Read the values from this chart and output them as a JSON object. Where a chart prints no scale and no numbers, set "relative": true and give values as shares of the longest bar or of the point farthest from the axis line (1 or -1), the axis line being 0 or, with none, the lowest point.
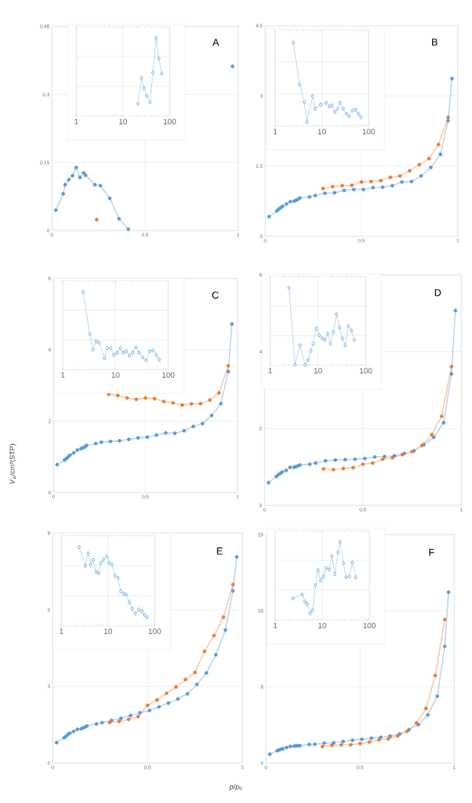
{
  "chart_data": [
    {
      "type": "line",
      "title": "A",
      "annotations": [
        "*V*$_{a}$/cm³(STP)",
        "*p*/*p*$_{0}$"
      ],
      "xlim": [
        0,
        1
      ],
      "xticks": [
        0,
        0.5,
        1
      ],
      "ylim": [
        0,
        0.45
      ],
      "yticks": [
        0,
        0.15,
        0.3,
        0.45
      ],
      "grid": true,
      "marker": "circle",
      "series": [
        {
          "color": "#5b9bd5",
          "x": [
            0.02,
            0.06,
            0.07,
            0.09,
            0.11,
            0.13,
            0.15,
            0.17,
            0.18,
            0.23,
            0.26,
            0.31,
            0.36,
            0.41
          ],
          "values": [
            0.045,
            0.081,
            0.101,
            0.112,
            0.121,
            0.139,
            0.117,
            0.127,
            0.122,
            0.101,
            0.099,
            0.071,
            0.026,
            0.003
          ]
        },
        {
          "color": "#5b9bd5",
          "x": [
            0.97
          ],
          "values": [
            0.362
          ]
        },
        {
          "color": "#ed7d31",
          "x": [
            0.24
          ],
          "values": [
            0.024
          ]
        }
      ]
    },
    {
      "type": "line",
      "log": "x",
      "relative": true,
      "tick_labels": "x",
      "xlim": [
        1,
        100
      ],
      "xticks": [
        1,
        10,
        100
      ],
      "grid": true,
      "marker": "diamond",
      "series": [
        {
          "color": "#5b9bd5",
          "x": [
            21,
            24.8,
            28.2,
            32.4,
            37.8,
            43.5,
            51.3,
            58.3,
            67.9
          ],
          "values": [
            0.16,
            0.49,
            0.36,
            0.26,
            0.18,
            0.56,
            1,
            0.74,
            0.55
          ]
        }
      ]
    },
    {
      "type": "line",
      "title": "B",
      "xlim": [
        0,
        1
      ],
      "xticks": [
        0,
        0.5,
        1
      ],
      "ylim": [
        0,
        4.5
      ],
      "yticks": [
        0,
        1.5,
        3,
        4.5
      ],
      "grid": true,
      "marker": "circle",
      "series": [
        {
          "color": "#5b9bd5",
          "x": [
            0.02,
            0.06,
            0.07,
            0.08,
            0.09,
            0.11,
            0.13,
            0.15,
            0.16,
            0.17,
            0.18,
            0.23,
            0.26,
            0.31,
            0.36,
            0.41,
            0.46,
            0.51,
            0.56,
            0.61,
            0.66,
            0.71,
            0.76,
            0.81,
            0.86,
            0.91,
            0.95,
            0.97
          ],
          "values": [
            0.42,
            0.54,
            0.58,
            0.61,
            0.64,
            0.69,
            0.74,
            0.75,
            0.77,
            0.79,
            0.82,
            0.84,
            0.87,
            0.92,
            0.93,
            0.98,
            1.0,
            1.0,
            1.04,
            1.05,
            1.08,
            1.16,
            1.17,
            1.29,
            1.47,
            1.75,
            2.47,
            3.37
          ]
        },
        {
          "color": "#ed7d31",
          "x": [
            0.3,
            0.35,
            0.4,
            0.45,
            0.5,
            0.55,
            0.6,
            0.65,
            0.7,
            0.75,
            0.8,
            0.85,
            0.9,
            0.95
          ],
          "values": [
            1.02,
            1.06,
            1.08,
            1.09,
            1.16,
            1.17,
            1.19,
            1.26,
            1.29,
            1.4,
            1.53,
            1.66,
            1.96,
            2.54
          ]
        }
      ]
    },
    {
      "type": "line",
      "log": "x",
      "relative": true,
      "tick_labels": "x",
      "xlim": [
        1,
        100
      ],
      "xticks": [
        1,
        10,
        100
      ],
      "grid": true,
      "marker": "diamond",
      "series": [
        {
          "color": "#5b9bd5",
          "x": [
            2.44,
            3.34,
            4.23,
            4.75,
            6.3,
            7.16,
            9.4,
            12.3,
            14.5,
            16.4,
            18.9,
            21.7,
            24.5,
            28.5,
            33.2,
            38.2,
            45.6,
            52.9,
            60.2,
            68.6
          ],
          "values": [
            1.0,
            0.5,
            0.29,
            0.05,
            0.36,
            0.21,
            0.26,
            0.28,
            0.24,
            0.25,
            0.17,
            0.21,
            0.28,
            0.21,
            0.15,
            0.12,
            0.19,
            0.2,
            0.15,
            0.11
          ]
        }
      ]
    },
    {
      "type": "line",
      "title": "C",
      "xlim": [
        0,
        1
      ],
      "xticks": [
        0,
        0.5,
        1
      ],
      "ylim": [
        0,
        6
      ],
      "yticks": [
        0,
        2,
        4,
        6
      ],
      "grid": true,
      "marker": "circle",
      "series": [
        {
          "color": "#5b9bd5",
          "x": [
            0.02,
            0.06,
            0.07,
            0.08,
            0.09,
            0.11,
            0.13,
            0.15,
            0.16,
            0.17,
            0.18,
            0.23,
            0.26,
            0.31,
            0.36,
            0.41,
            0.46,
            0.51,
            0.56,
            0.61,
            0.66,
            0.71,
            0.76,
            0.81,
            0.86,
            0.91,
            0.95,
            0.97
          ],
          "values": [
            0.78,
            0.91,
            0.95,
            1.0,
            1.05,
            1.11,
            1.19,
            1.23,
            1.25,
            1.28,
            1.32,
            1.37,
            1.41,
            1.43,
            1.45,
            1.49,
            1.53,
            1.55,
            1.61,
            1.67,
            1.66,
            1.73,
            1.85,
            1.93,
            2.16,
            2.49,
            3.39,
            4.72
          ]
        },
        {
          "color": "#ed7d31",
          "x": [
            0.3,
            0.35,
            0.4,
            0.45,
            0.5,
            0.55,
            0.6,
            0.65,
            0.7,
            0.75,
            0.8,
            0.85,
            0.9,
            0.95
          ],
          "values": [
            2.75,
            2.72,
            2.65,
            2.61,
            2.65,
            2.63,
            2.55,
            2.51,
            2.45,
            2.48,
            2.49,
            2.59,
            2.79,
            3.55
          ]
        }
      ]
    },
    {
      "type": "line",
      "log": "x",
      "relative": true,
      "tick_labels": "x",
      "xlim": [
        1,
        100
      ],
      "xticks": [
        1,
        10,
        100
      ],
      "grid": true,
      "marker": "diamond",
      "series": [
        {
          "color": "#5b9bd5",
          "x": [
            2.44,
            3.26,
            3.73,
            4.31,
            4.84,
            6.2,
            6.96,
            8.1,
            9.3,
            10.8,
            12.3,
            14.0,
            15.9,
            18.4,
            21.2,
            24.4,
            27.9,
            32.7,
            38.1,
            44.1,
            51.0,
            59.6,
            67.5
          ],
          "values": [
            1.0,
            0.46,
            0.26,
            0.37,
            0.35,
            0.15,
            0.28,
            0.28,
            0.19,
            0.22,
            0.28,
            0.22,
            0.24,
            0.18,
            0.22,
            0.29,
            0.22,
            0.16,
            0.12,
            0.24,
            0.25,
            0.19,
            0.13
          ]
        }
      ]
    },
    {
      "type": "line",
      "title": "D",
      "xlim": [
        0,
        1
      ],
      "xticks": [
        0,
        0.5,
        1
      ],
      "ylim": [
        0,
        6
      ],
      "yticks": [
        0,
        2,
        4,
        6
      ],
      "grid": true,
      "marker": "circle",
      "series": [
        {
          "color": "#5b9bd5",
          "x": [
            0.02,
            0.06,
            0.07,
            0.08,
            0.09,
            0.11,
            0.13,
            0.15,
            0.16,
            0.17,
            0.18,
            0.23,
            0.26,
            0.31,
            0.36,
            0.41,
            0.46,
            0.51,
            0.56,
            0.61,
            0.66,
            0.71,
            0.76,
            0.81,
            0.86,
            0.91,
            0.95,
            0.97
          ],
          "values": [
            0.59,
            0.75,
            0.8,
            0.83,
            0.87,
            0.91,
            0.99,
            0.99,
            1.01,
            1.03,
            1.05,
            1.07,
            1.1,
            1.16,
            1.18,
            1.19,
            1.2,
            1.22,
            1.26,
            1.27,
            1.29,
            1.35,
            1.42,
            1.58,
            1.77,
            2.15,
            3.42,
            5.07
          ]
        },
        {
          "color": "#ed7d31",
          "x": [
            0.3,
            0.35,
            0.4,
            0.45,
            0.5,
            0.55,
            0.6,
            0.65,
            0.7,
            0.75,
            0.8,
            0.85,
            0.9,
            0.95
          ],
          "values": [
            0.95,
            0.93,
            0.96,
            0.98,
            1.07,
            1.1,
            1.2,
            1.24,
            1.32,
            1.4,
            1.56,
            1.84,
            2.32,
            3.61
          ]
        }
      ]
    },
    {
      "type": "line",
      "log": "x",
      "relative": true,
      "tick_labels": "x",
      "xlim": [
        1,
        100
      ],
      "xticks": [
        1,
        10,
        100
      ],
      "grid": true,
      "marker": "diamond",
      "series": [
        {
          "color": "#5b9bd5",
          "x": [
            2.48,
            3.31,
            4.21,
            5.37,
            6.17,
            7.08,
            7.94,
            9.22,
            10.6,
            12.2,
            14.0,
            15.8,
            18.2,
            20.9,
            24.5,
            28.2,
            32.4,
            37.2,
            43.2,
            50.1,
            57.5
          ],
          "values": [
            1.0,
            0.01,
            0.26,
            0.01,
            0.07,
            0.19,
            0.28,
            0.48,
            0.39,
            0.35,
            0.33,
            0.41,
            0.28,
            0.43,
            0.66,
            0.49,
            0.35,
            0.26,
            0.51,
            0.45,
            0.33
          ]
        }
      ]
    },
    {
      "type": "line",
      "title": "E",
      "xlim": [
        0,
        1
      ],
      "xticks": [
        0,
        0.5,
        1
      ],
      "ylim": [
        0,
        9
      ],
      "yticks": [
        0,
        3,
        6,
        9
      ],
      "grid": true,
      "marker": "circle",
      "series": [
        {
          "color": "#5b9bd5",
          "x": [
            0.02,
            0.06,
            0.07,
            0.08,
            0.09,
            0.11,
            0.13,
            0.15,
            0.16,
            0.17,
            0.18,
            0.23,
            0.26,
            0.31,
            0.36,
            0.41,
            0.46,
            0.51,
            0.56,
            0.61,
            0.66,
            0.71,
            0.76,
            0.81,
            0.86,
            0.91,
            0.95,
            0.97
          ],
          "values": [
            0.8,
            0.99,
            1.05,
            1.12,
            1.17,
            1.24,
            1.32,
            1.34,
            1.38,
            1.41,
            1.45,
            1.53,
            1.58,
            1.67,
            1.75,
            1.86,
            1.97,
            2.06,
            2.2,
            2.35,
            2.51,
            2.71,
            3.08,
            3.53,
            4.24,
            5.21,
            6.74,
            8.07
          ]
        },
        {
          "color": "#ed7d31",
          "x": [
            0.3,
            0.35,
            0.4,
            0.45,
            0.5,
            0.55,
            0.6,
            0.65,
            0.7,
            0.75,
            0.8,
            0.85,
            0.9,
            0.95
          ],
          "values": [
            1.59,
            1.63,
            1.71,
            1.82,
            2.26,
            2.47,
            2.73,
            2.98,
            3.27,
            3.55,
            4.37,
            4.99,
            5.71,
            6.99
          ]
        }
      ]
    },
    {
      "type": "line",
      "log": "x",
      "relative": true,
      "tick_labels": "x",
      "xlim": [
        1,
        100
      ],
      "xticks": [
        1,
        10,
        100
      ],
      "grid": true,
      "marker": "diamond",
      "series": [
        {
          "color": "#5b9bd5",
          "x": [
            2.41,
            3.27,
            3.76,
            4.23,
            4.8,
            5.53,
            6.3,
            7.07,
            7.95,
            9.38,
            10.6,
            12.3,
            14.1,
            16.4,
            18.7,
            21.8,
            24.5,
            28.6,
            32.9,
            38.2,
            45.5,
            52.9,
            60.2,
            68.6
          ],
          "values": [
            1.0,
            0.76,
            0.92,
            0.78,
            0.84,
            0.69,
            0.67,
            0.8,
            0.84,
            0.88,
            0.8,
            0.78,
            0.64,
            0.61,
            0.44,
            0.41,
            0.4,
            0.3,
            0.22,
            0.16,
            0.21,
            0.19,
            0.14,
            0.11
          ]
        }
      ]
    },
    {
      "type": "line",
      "title": "F",
      "xlim": [
        0,
        1
      ],
      "xticks": [
        0,
        0.5,
        1
      ],
      "ylim": [
        0,
        15
      ],
      "yticks": [
        0,
        5,
        10,
        15
      ],
      "grid": true,
      "marker": "circle",
      "series": [
        {
          "color": "#5b9bd5",
          "x": [
            0.02,
            0.06,
            0.07,
            0.08,
            0.09,
            0.11,
            0.13,
            0.15,
            0.16,
            0.17,
            0.18,
            0.23,
            0.26,
            0.31,
            0.36,
            0.41,
            0.46,
            0.51,
            0.56,
            0.61,
            0.66,
            0.71,
            0.76,
            0.81,
            0.86,
            0.91,
            0.95,
            0.97
          ],
          "values": [
            0.58,
            0.81,
            0.86,
            0.91,
            0.94,
            1.02,
            1.09,
            1.11,
            1.13,
            1.13,
            1.14,
            1.22,
            1.23,
            1.31,
            1.33,
            1.41,
            1.5,
            1.56,
            1.63,
            1.69,
            1.77,
            1.91,
            2.19,
            2.52,
            3.16,
            4.39,
            7.66,
            11.22
          ]
        },
        {
          "color": "#ed7d31",
          "x": [
            0.3,
            0.35,
            0.4,
            0.45,
            0.5,
            0.55,
            0.6,
            0.65,
            0.7,
            0.75,
            0.8,
            0.85,
            0.9,
            0.95
          ],
          "values": [
            1.09,
            1.17,
            1.19,
            1.2,
            1.28,
            1.38,
            1.52,
            1.59,
            1.78,
            2.08,
            2.63,
            3.59,
            5.75,
            9.42
          ]
        }
      ]
    },
    {
      "type": "line",
      "log": "x",
      "relative": true,
      "tick_labels": "x",
      "xlim": [
        1,
        100
      ],
      "xticks": [
        1,
        10,
        100
      ],
      "grid": true,
      "marker": "diamond",
      "series": [
        {
          "color": "#5b9bd5",
          "x": [
            2.4,
            3.73,
            4.25,
            4.76,
            5.55,
            6.23,
            7.17,
            8.15,
            9.27,
            10.6,
            12.1,
            14.1,
            16.0,
            18.5,
            21.7,
            23.8,
            28.1,
            31.9,
            37.6,
            43.6,
            51.4
          ],
          "values": [
            0.28,
            0.33,
            0.24,
            0.21,
            0.09,
            0.13,
            0.45,
            0.64,
            0.51,
            0.56,
            0.67,
            0.65,
            0.82,
            0.59,
            0.87,
            1.0,
            0.73,
            0.55,
            0.56,
            0.74,
            0.55
          ]
        }
      ]
    }
  ]
}
